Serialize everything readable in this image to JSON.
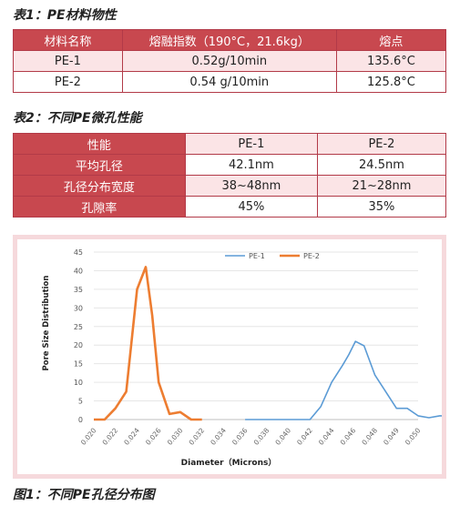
{
  "table1": {
    "caption": "表1：PE材料物性",
    "headers": [
      "材料名称",
      "熔融指数（190°C，21.6kg）",
      "熔点"
    ],
    "rows": [
      [
        "PE-1",
        "0.52g/10min",
        "135.6°C"
      ],
      [
        "PE-2",
        "0.54 g/10min",
        "125.8°C"
      ]
    ]
  },
  "table2": {
    "caption": "表2：不同PE微孔性能",
    "headers": [
      "性能",
      "PE-1",
      "PE-2"
    ],
    "rows": [
      [
        "平均孔径",
        "42.1nm",
        "24.5nm"
      ],
      [
        "孔径分布宽度",
        "38~48nm",
        "21~28nm"
      ],
      [
        "孔隙率",
        "45%",
        "35%"
      ]
    ]
  },
  "chart_data": {
    "type": "line",
    "xlabel": "Diameter（Microns）",
    "ylabel": "Pore Size Distribution",
    "ylim": [
      0,
      45
    ],
    "yticks": [
      "0",
      "5",
      "10",
      "15",
      "20",
      "25",
      "30",
      "35",
      "40",
      "45"
    ],
    "xticks": [
      "0.020",
      "0.022",
      "0.024",
      "0.026",
      "0.030",
      "0.032",
      "0.034",
      "0.036",
      "0.038",
      "0.040",
      "0.042",
      "0.044",
      "0.046",
      "0.048",
      "0.049",
      "0.050"
    ],
    "legend_position": "top-center",
    "series": [
      {
        "name": "PE-1",
        "color": "#5b9bd5",
        "points": [
          [
            7,
            0
          ],
          [
            8,
            0
          ],
          [
            9,
            0
          ],
          [
            10,
            0
          ],
          [
            10.5,
            3.5
          ],
          [
            11,
            10
          ],
          [
            11.5,
            14.5
          ],
          [
            11.8,
            17.5
          ],
          [
            12.1,
            21
          ],
          [
            12.5,
            19.8
          ],
          [
            13,
            12
          ],
          [
            13.5,
            7.5
          ],
          [
            14,
            3
          ],
          [
            14.5,
            3
          ],
          [
            15,
            1
          ],
          [
            15.5,
            0.5
          ],
          [
            16,
            1
          ],
          [
            17,
            1
          ],
          [
            18,
            1
          ]
        ]
      },
      {
        "name": "PE-2",
        "color": "#ed7d31",
        "points": [
          [
            0,
            0
          ],
          [
            0.5,
            0
          ],
          [
            1,
            3
          ],
          [
            1.5,
            7.5
          ],
          [
            2,
            35
          ],
          [
            2.4,
            41
          ],
          [
            2.7,
            28
          ],
          [
            3,
            10
          ],
          [
            3.5,
            1.5
          ],
          [
            4,
            2
          ],
          [
            4.5,
            0
          ],
          [
            5,
            0
          ]
        ]
      }
    ]
  },
  "figure_caption": "图1：不同PE孔径分布图"
}
